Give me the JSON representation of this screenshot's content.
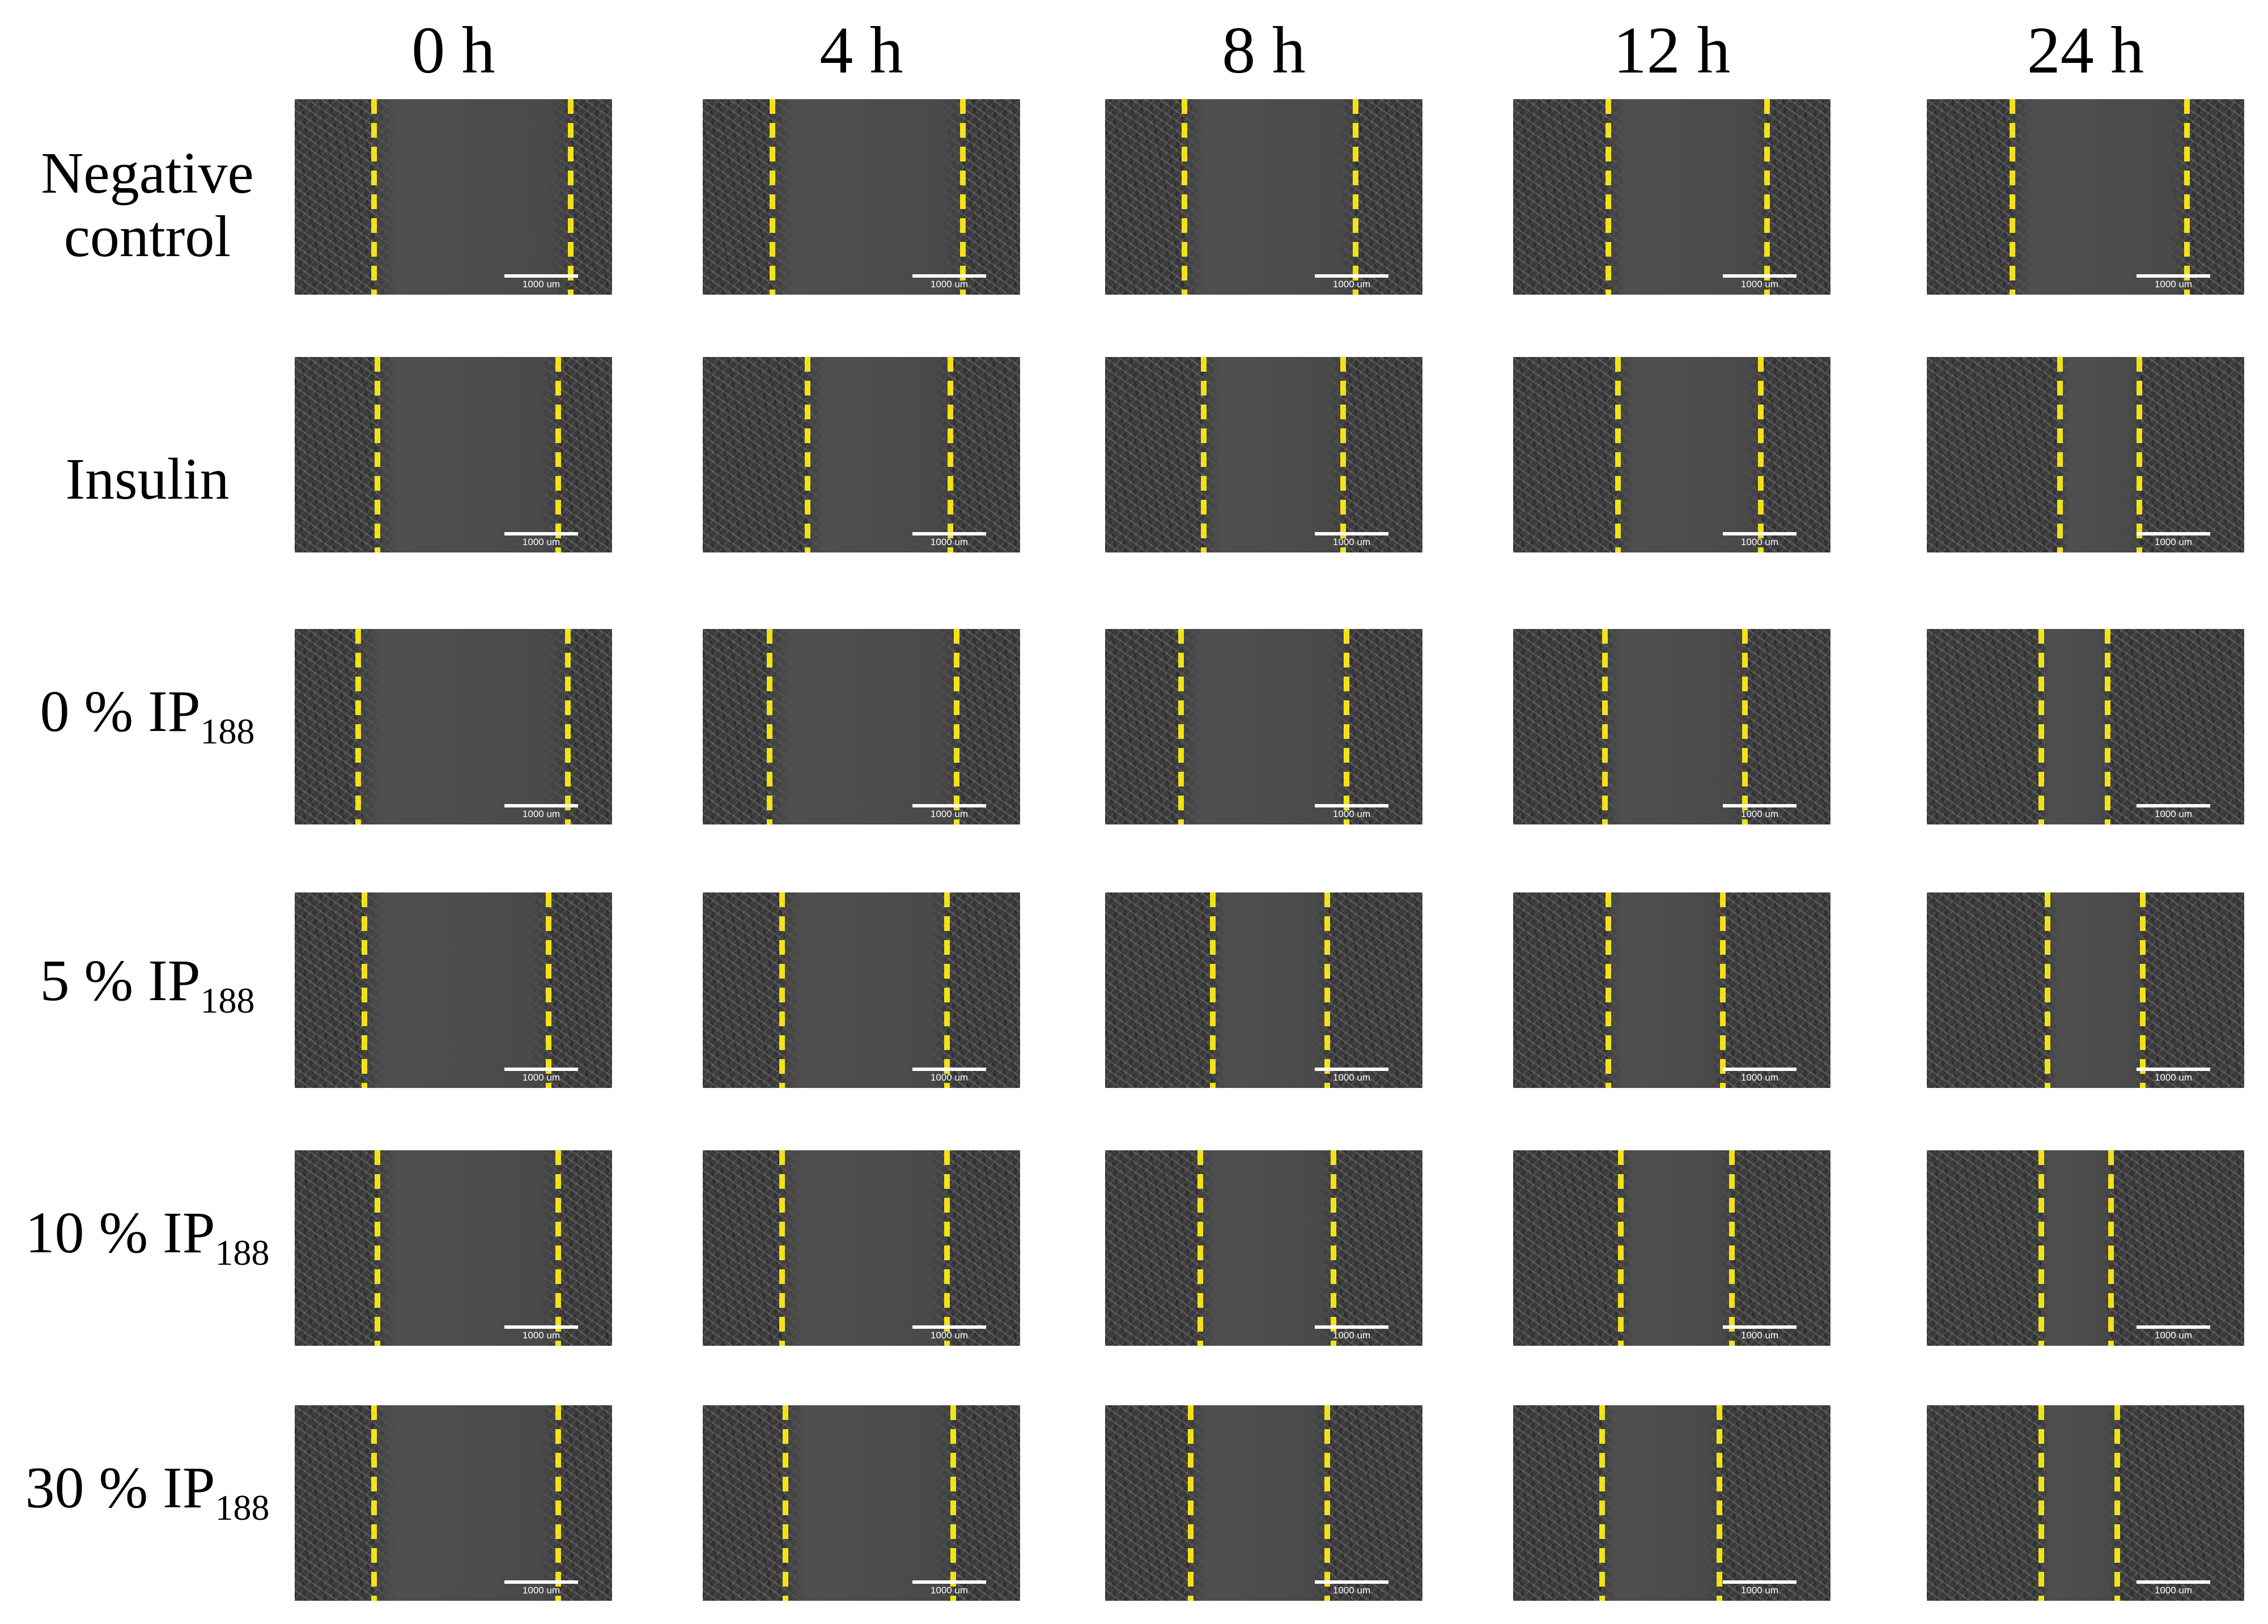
{
  "columns": [
    {
      "label": "0 h"
    },
    {
      "label": "4 h"
    },
    {
      "label": "8 h"
    },
    {
      "label": "12 h"
    },
    {
      "label": "24 h"
    }
  ],
  "rows": [
    {
      "label_lines": [
        "Negative",
        "control"
      ],
      "label_main": "",
      "label_sub": ""
    },
    {
      "label_lines": [
        "Insulin"
      ],
      "label_main": "",
      "label_sub": ""
    },
    {
      "label_lines": [],
      "label_main": "0 % IP",
      "label_sub": "188"
    },
    {
      "label_lines": [],
      "label_main": "5 % IP",
      "label_sub": "188"
    },
    {
      "label_lines": [],
      "label_main": "10 % IP",
      "label_sub": "188"
    },
    {
      "label_lines": [],
      "label_main": "30 % IP",
      "label_sub": "188"
    }
  ],
  "scale_bar_label": "1000 um",
  "colors": {
    "wound_edge_line": "#f3e21a",
    "background": "#ffffff"
  }
}
